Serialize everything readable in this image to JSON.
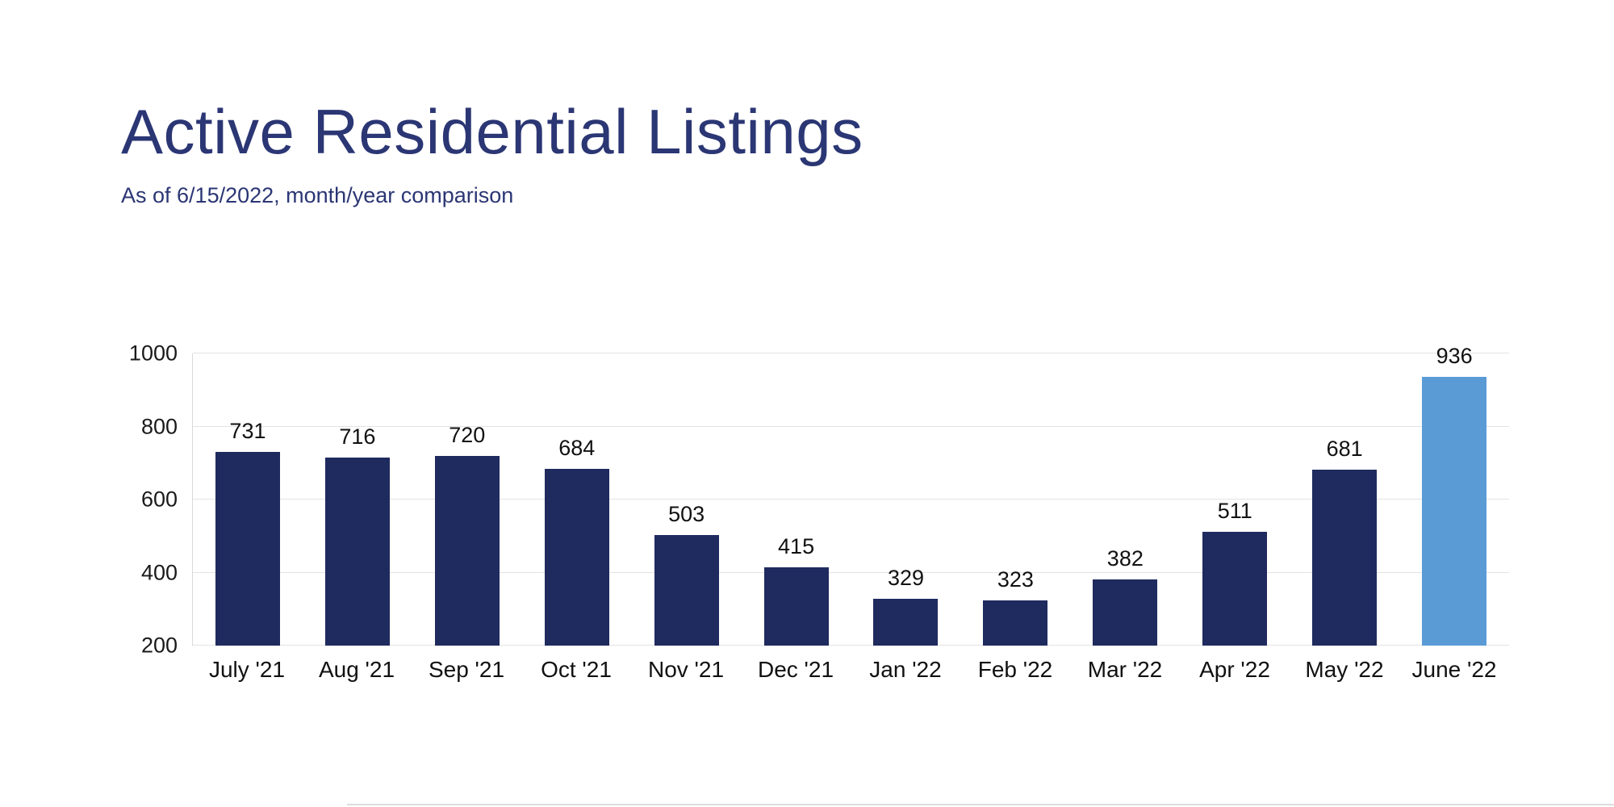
{
  "page": {
    "title": "Active Residential Listings",
    "subtitle": "As of 6/15/2022, month/year comparison"
  },
  "colors": {
    "title_text": "#2b3674",
    "bar": "#1f2a5e",
    "highlight_bar": "#5b9bd5",
    "gridline": "#e3e3e3",
    "axis_text": "#1a1a1a"
  },
  "chart_data": {
    "type": "bar",
    "title": "Active Residential Listings",
    "subtitle": "As of 6/15/2022, month/year comparison",
    "categories": [
      "July '21",
      "Aug '21",
      "Sep '21",
      "Oct '21",
      "Nov '21",
      "Dec '21",
      "Jan '22",
      "Feb '22",
      "Mar '22",
      "Apr '22",
      "May '22",
      "June '22"
    ],
    "values": [
      731,
      716,
      720,
      684,
      503,
      415,
      329,
      323,
      382,
      511,
      681,
      936
    ],
    "highlight_index": 11,
    "xlabel": "",
    "ylabel": "",
    "ylim": [
      200,
      1000
    ],
    "yticks": [
      200,
      400,
      600,
      800,
      1000
    ],
    "grid": true,
    "legend": "none",
    "data_labels": true
  }
}
